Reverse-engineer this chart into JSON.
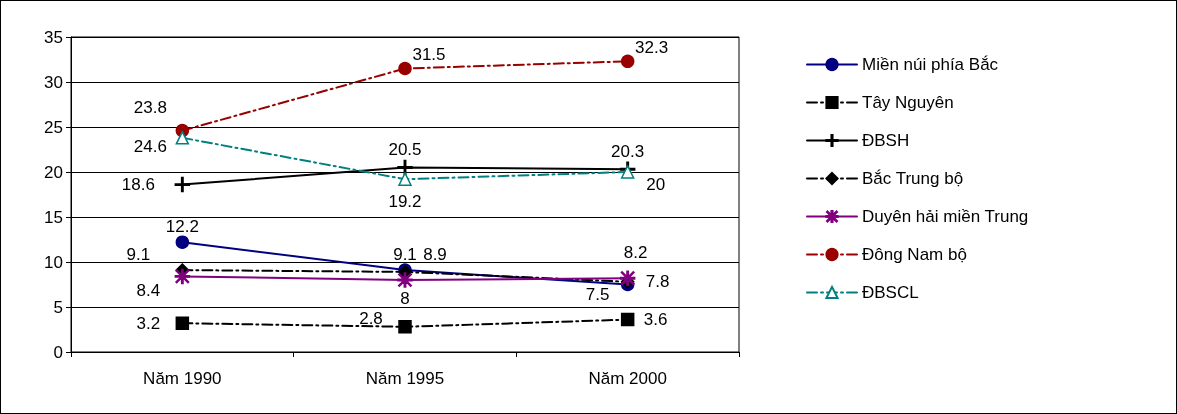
{
  "chart_data": {
    "type": "line",
    "categories": [
      "Năm 1990",
      "Năm 1995",
      "Năm 2000"
    ],
    "series": [
      {
        "name": "Miền núi phía Bắc",
        "color": "#000080",
        "values": [
          12.2,
          9.1,
          7.5
        ],
        "marker": "circle",
        "line_style": "solid"
      },
      {
        "name": "Tây Nguyên",
        "color": "#000000",
        "values": [
          3.2,
          2.8,
          3.6
        ],
        "marker": "square",
        "line_style": "dashed"
      },
      {
        "name": "ĐBSH",
        "color": "#000000",
        "values": [
          18.6,
          20.5,
          20.3
        ],
        "marker": "cross",
        "line_style": "solid"
      },
      {
        "name": "Bắc Trung bộ",
        "color": "#000000",
        "values": [
          9.1,
          8.9,
          7.8
        ],
        "marker": "diamond",
        "line_style": "dashed"
      },
      {
        "name": "Duyên hải miền Trung",
        "color": "#800080",
        "values": [
          8.4,
          8,
          8.2
        ],
        "marker": "star",
        "line_style": "solid"
      },
      {
        "name": "Đông Nam bộ",
        "color": "#990000",
        "values": [
          24.6,
          31.5,
          32.3
        ],
        "marker": "circle",
        "line_style": "dashed"
      },
      {
        "name": "ĐBSCL",
        "color": "#008080",
        "values": [
          23.8,
          19.2,
          20
        ],
        "marker": "triangle",
        "line_style": "dashed"
      }
    ],
    "ylim": [
      0,
      35
    ],
    "yticks": [
      0,
      5,
      10,
      15,
      20,
      25,
      30,
      35
    ],
    "grid": "y",
    "legend": "right",
    "data_labels": true
  }
}
